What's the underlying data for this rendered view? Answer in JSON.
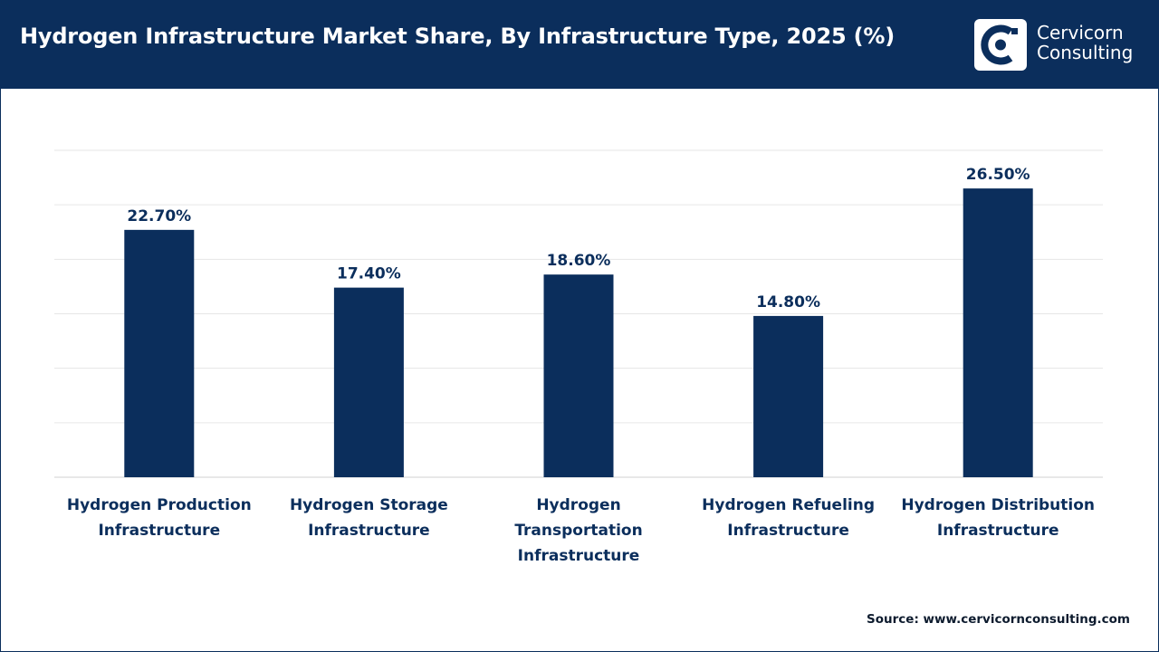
{
  "header": {
    "title": "Hydrogen Infrastructure Market Share, By Infrastructure Type, 2025 (%)",
    "brand_line1": "Cervicorn",
    "brand_line2": "Consulting"
  },
  "source": "Source: www.cervicornconsulting.com",
  "colors": {
    "header_bg": "#0b2e5c",
    "bar": "#0b2e5c",
    "grid": "#e6e6e6",
    "text_dark": "#0b2e5c"
  },
  "chart_data": {
    "type": "bar",
    "categories": [
      [
        "Hydrogen Production",
        "Infrastructure"
      ],
      [
        "Hydrogen Storage",
        "Infrastructure"
      ],
      [
        "Hydrogen",
        "Transportation",
        "Infrastructure"
      ],
      [
        "Hydrogen Refueling",
        "Infrastructure"
      ],
      [
        "Hydrogen Distribution",
        "Infrastructure"
      ]
    ],
    "values": [
      22.7,
      17.4,
      18.6,
      14.8,
      26.5
    ],
    "data_labels": [
      "22.70%",
      "17.40%",
      "18.60%",
      "14.80%",
      "26.50%"
    ],
    "ylim": [
      0,
      30
    ],
    "gridlines": true,
    "legend": "none"
  }
}
